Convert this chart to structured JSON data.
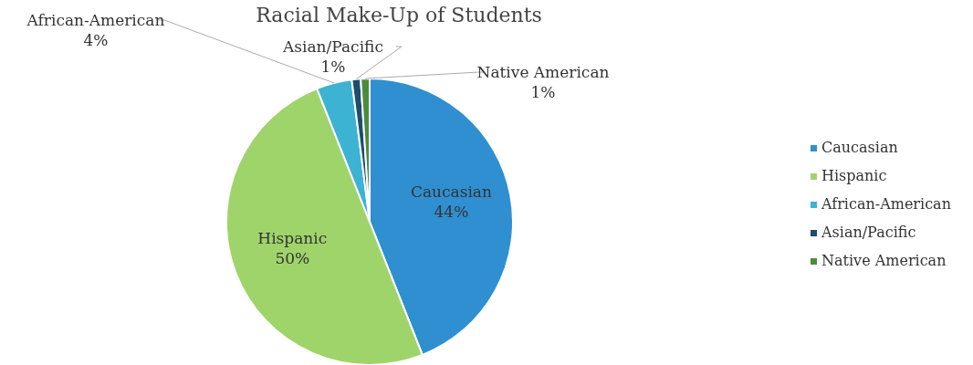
{
  "chart_data": {
    "type": "pie",
    "title": "Racial Make-Up of Students",
    "categories": [
      "Caucasian",
      "Hispanic",
      "African-American",
      "Asian/Pacific",
      "Native American"
    ],
    "values": [
      44,
      50,
      4,
      1,
      1
    ],
    "value_labels": [
      "44%",
      "50%",
      "4%",
      "1%",
      "1%"
    ],
    "colors": [
      "#2f8fd0",
      "#9fd46a",
      "#3db3d3",
      "#1e4d6e",
      "#4b8c3b"
    ],
    "legend": "right"
  }
}
